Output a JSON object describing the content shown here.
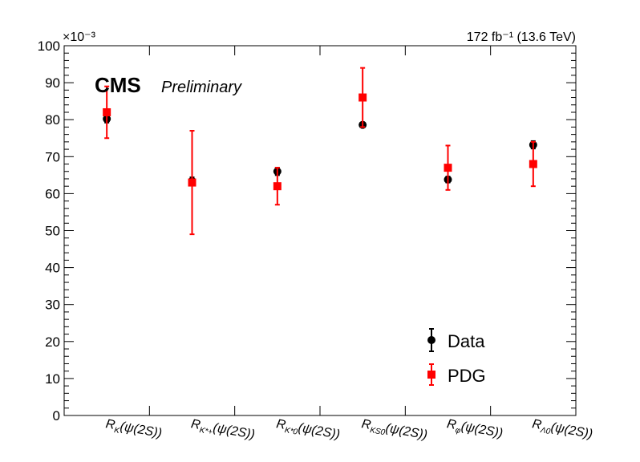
{
  "header": {
    "lumi_label": "172 fb⁻¹ (13.6 TeV)",
    "experiment": "CMS",
    "status": "Preliminary",
    "y_multiplier": "×10⁻³"
  },
  "chart_data": {
    "type": "scatter",
    "title": "",
    "xlabel": "",
    "ylabel": "",
    "categories": [
      "R_K(ψ(2S))",
      "R_K*+(ψ(2S))",
      "R_K*0(ψ(2S))",
      "R_KS0(ψ(2S))",
      "R_φ(ψ(2S))",
      "R_Λ0(ψ(2S))"
    ],
    "ylim": [
      0,
      100
    ],
    "y_ticks": [
      0,
      10,
      20,
      30,
      40,
      50,
      60,
      70,
      80,
      90,
      100
    ],
    "y_tick_labels": [
      "0",
      "10",
      "20",
      "30",
      "40",
      "50",
      "60",
      "70",
      "80",
      "90",
      "100"
    ],
    "legend_position": "bottom-right",
    "series": [
      {
        "name": "Data",
        "marker": "circle",
        "color": "#000000",
        "values": [
          80.2,
          63.4,
          66.0,
          78.6,
          63.8,
          73.2
        ],
        "err_low": [
          1.0,
          1.0,
          1.0,
          0.6,
          0.8,
          1.0
        ],
        "err_high": [
          1.0,
          1.0,
          1.0,
          0.6,
          0.8,
          1.0
        ]
      },
      {
        "name": "PDG",
        "marker": "square",
        "color": "#ff0000",
        "values": [
          82.0,
          63.0,
          62.0,
          86.0,
          67.0,
          68.0
        ],
        "err_low": [
          7.0,
          14.0,
          5.0,
          8.0,
          6.0,
          6.0
        ],
        "err_high": [
          7.0,
          14.0,
          5.0,
          8.0,
          6.0,
          6.0
        ]
      }
    ]
  }
}
